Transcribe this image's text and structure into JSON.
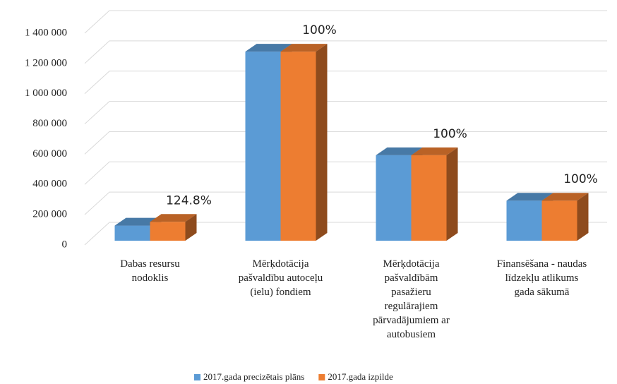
{
  "chart_data": {
    "type": "bar3d",
    "categories": [
      "Dabas resursu\nnodoklis",
      "Mērķdotācija\npašvaldību autoceļu\n(ielu) fondiem",
      "Mērķdotācija\npašvaldībām\npasažieru\nregulārajiem\npārvadājumiem ar\nautobusiem",
      "Finansēšana - naudas\nlīdzekļu atlikums\ngada sākumā"
    ],
    "series": [
      {
        "name": "2017.gada precizētais plāns",
        "color": "#5b9bd5",
        "values": [
          100000,
          1250000,
          565000,
          265000
        ]
      },
      {
        "name": "2017.gada izpilde",
        "color": "#ed7d31",
        "values": [
          124800,
          1250000,
          565000,
          265000
        ]
      }
    ],
    "annotations": [
      "124.8%",
      "100%",
      "100%",
      "100%"
    ],
    "ylim": [
      0,
      1400000
    ],
    "yticks": [
      0,
      {
        "value": 200000,
        "label": "200 000"
      },
      {
        "value": 400000,
        "label": "400 000"
      },
      {
        "value": 600000,
        "label": "600 000"
      },
      {
        "value": 800000,
        "label": "800 000"
      },
      {
        "value": 1000000,
        "label": "1 000 000"
      },
      {
        "value": 1200000,
        "label": "1 200 000"
      },
      {
        "value": 1400000,
        "label": "1 400 000"
      }
    ],
    "grid": true,
    "legend": "bottom"
  }
}
